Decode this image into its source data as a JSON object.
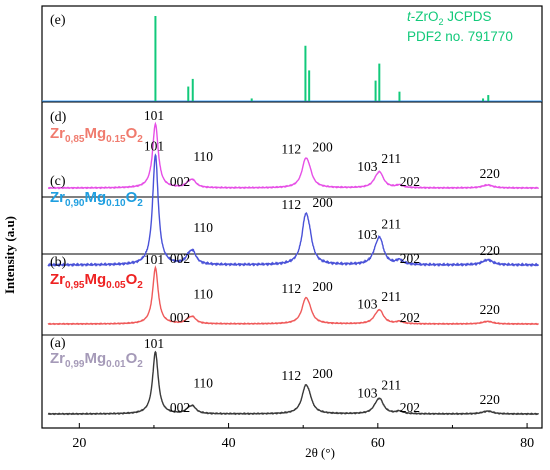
{
  "chart_data": {
    "type": "line",
    "xlabel": "2θ (°)",
    "ylabel": "Intensity (a.u)",
    "xlim": [
      15,
      82
    ],
    "x_ticks": [
      20,
      40,
      60,
      80
    ],
    "reference": {
      "label": "(e)",
      "title_prefix": "t",
      "title_rest": "-ZrO",
      "title_sub": "2",
      "title_tail": " JCPDS",
      "title_line2": "PDF2 no. 791770",
      "color": "#12c97a",
      "peaks": [
        {
          "x": 30.2,
          "h": 1.0
        },
        {
          "x": 34.6,
          "h": 0.17
        },
        {
          "x": 35.2,
          "h": 0.26
        },
        {
          "x": 43.1,
          "h": 0.03
        },
        {
          "x": 50.3,
          "h": 0.65
        },
        {
          "x": 50.8,
          "h": 0.36
        },
        {
          "x": 59.7,
          "h": 0.24
        },
        {
          "x": 60.2,
          "h": 0.44
        },
        {
          "x": 62.9,
          "h": 0.11
        },
        {
          "x": 74.1,
          "h": 0.03
        },
        {
          "x": 74.8,
          "h": 0.07
        }
      ]
    },
    "series": [
      {
        "label": "(d)",
        "formula": [
          "Zr",
          "0,85",
          "Mg",
          "0.15",
          "O",
          "2"
        ],
        "color": "#e64fe6",
        "text_color": "#f07b6e"
      },
      {
        "label": "(c)",
        "formula": [
          "Zr",
          "0,90",
          "Mg",
          "0.10",
          "O",
          "2"
        ],
        "color": "#4a52d8",
        "text_color": "#1f9fe0"
      },
      {
        "label": "(b)",
        "formula": [
          "Zr",
          "0,95",
          "Mg",
          "0.05",
          "O",
          "2"
        ],
        "color": "#ef5a5a",
        "text_color": "#ee2222"
      },
      {
        "label": "(a)",
        "formula": [
          "Zr",
          "0,99",
          "Mg",
          "0.01",
          "O",
          "2"
        ],
        "color": "#3a3a3a",
        "text_color": "#a59ab8"
      }
    ],
    "peaks": [
      {
        "x": 30.2,
        "h": 1.0,
        "w": 0.45
      },
      {
        "x": 34.6,
        "h": 0.05,
        "w": 0.45
      },
      {
        "x": 35.2,
        "h": 0.11,
        "w": 0.55
      },
      {
        "x": 50.3,
        "h": 0.38,
        "w": 0.6
      },
      {
        "x": 50.8,
        "h": 0.15,
        "w": 0.55
      },
      {
        "x": 59.8,
        "h": 0.08,
        "w": 0.6
      },
      {
        "x": 60.3,
        "h": 0.2,
        "w": 0.6
      },
      {
        "x": 62.9,
        "h": 0.04,
        "w": 0.55
      },
      {
        "x": 74.4,
        "h": 0.02,
        "w": 0.8
      },
      {
        "x": 74.9,
        "h": 0.03,
        "w": 0.7
      }
    ],
    "miller_labels": [
      "101",
      "002",
      "110",
      "112",
      "200",
      "103",
      "211",
      "202",
      "220"
    ]
  }
}
